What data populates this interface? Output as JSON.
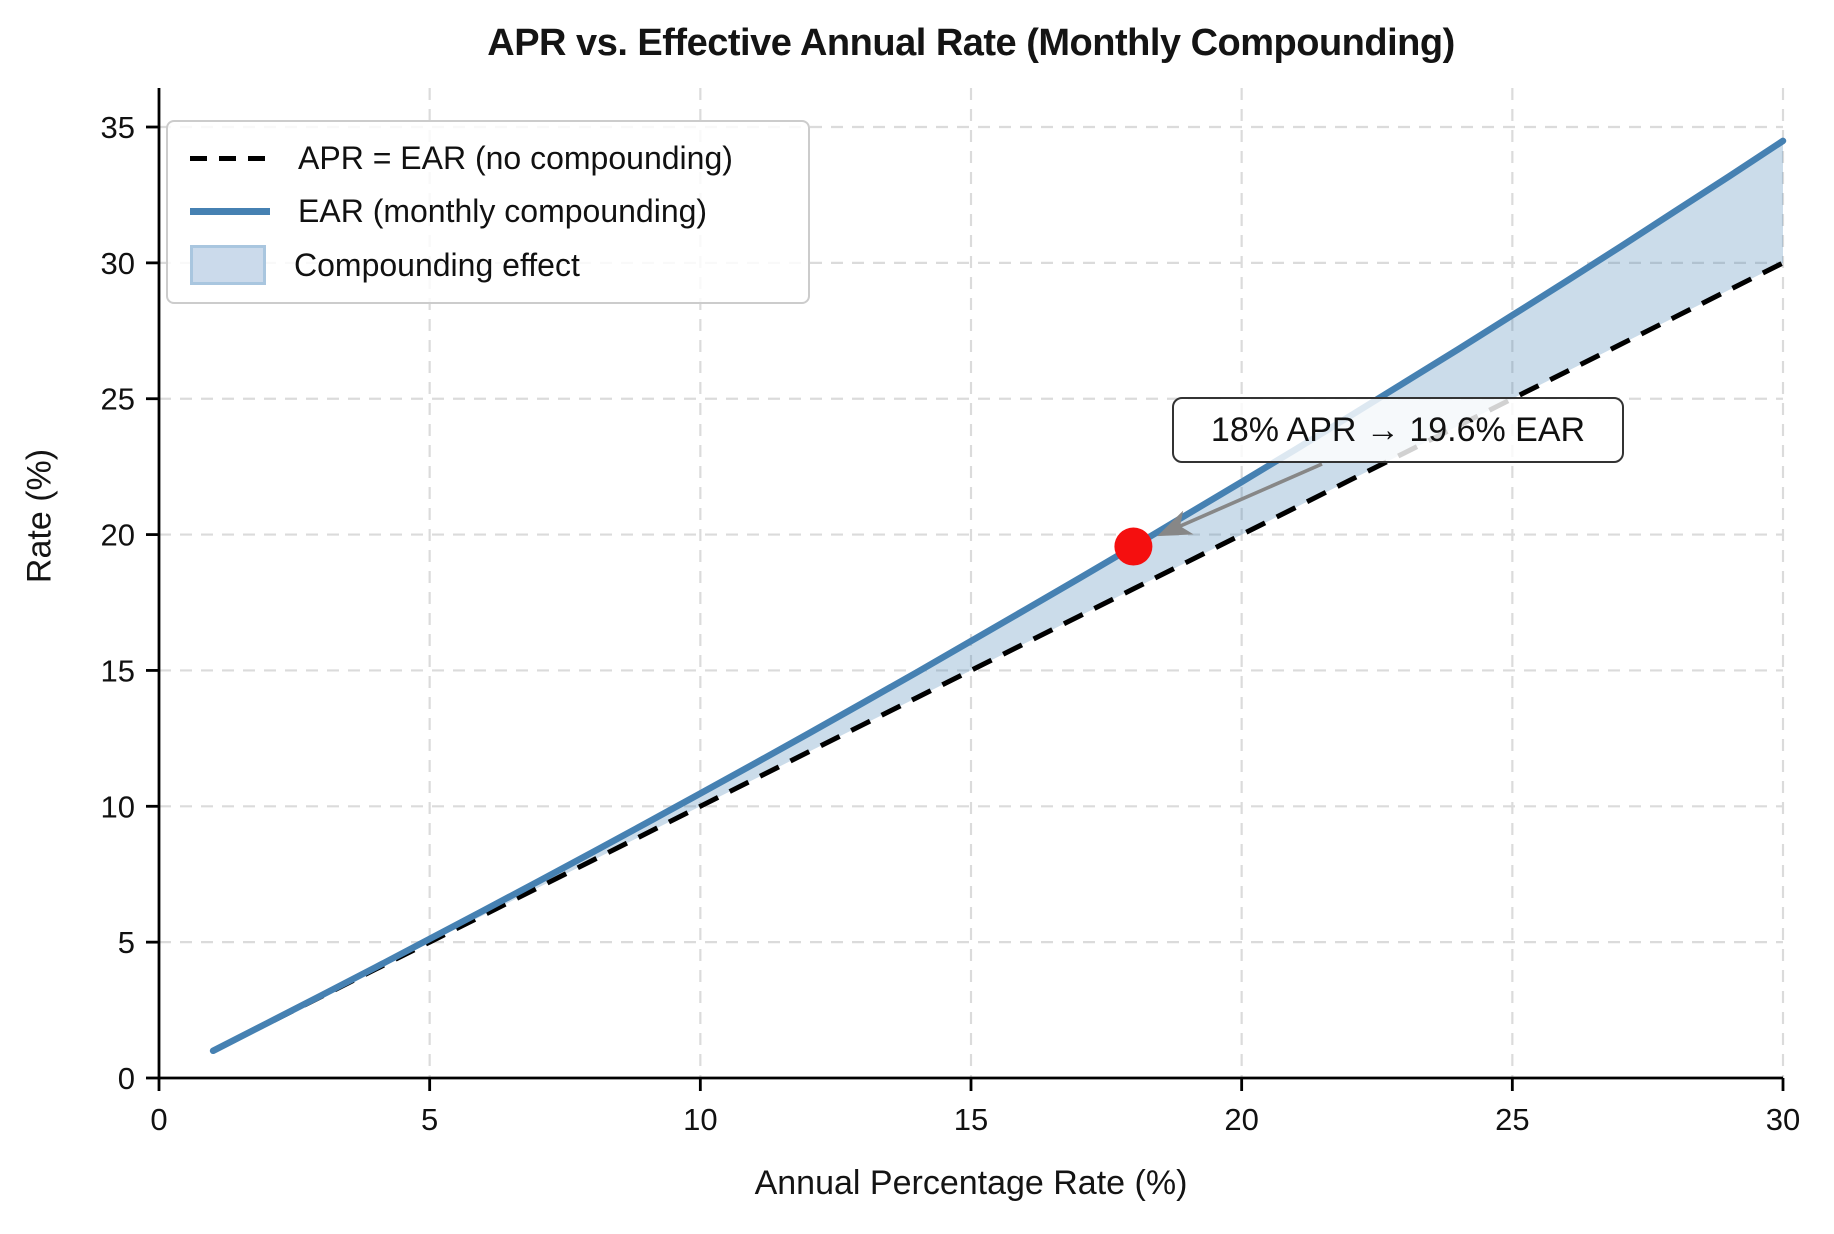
{
  "chart_data": {
    "type": "line",
    "title": "APR vs. Effective Annual Rate (Monthly Compounding)",
    "xlabel": "Annual Percentage Rate (%)",
    "ylabel": "Rate (%)",
    "xlim": [
      0,
      30
    ],
    "ylim": [
      0,
      35
    ],
    "x_ticks": [
      0,
      5,
      10,
      15,
      20,
      25,
      30
    ],
    "y_ticks": [
      0,
      5,
      10,
      15,
      20,
      25,
      30,
      35
    ],
    "grid": true,
    "grid_color": "#dbdbdb",
    "legend_position": "upper-left",
    "x": [
      1,
      2,
      3,
      4,
      5,
      6,
      7,
      8,
      9,
      10,
      11,
      12,
      13,
      14,
      15,
      16,
      17,
      18,
      19,
      20,
      21,
      22,
      23,
      24,
      25,
      26,
      27,
      28,
      29,
      30
    ],
    "series": [
      {
        "name": "APR = EAR (no compounding)",
        "style": "dashed",
        "color": "#000000",
        "values": [
          1,
          2,
          3,
          4,
          5,
          6,
          7,
          8,
          9,
          10,
          11,
          12,
          13,
          14,
          15,
          16,
          17,
          18,
          19,
          20,
          21,
          22,
          23,
          24,
          25,
          26,
          27,
          28,
          29,
          30
        ]
      },
      {
        "name": "EAR (monthly compounding)",
        "style": "solid",
        "color": "#4681b2",
        "values": [
          1.0,
          2.02,
          3.04,
          4.07,
          5.12,
          6.17,
          7.23,
          8.3,
          9.38,
          10.47,
          11.57,
          12.68,
          13.8,
          14.93,
          16.08,
          17.23,
          18.39,
          19.56,
          20.75,
          21.94,
          23.14,
          24.36,
          25.59,
          26.82,
          28.07,
          29.33,
          30.6,
          31.89,
          33.18,
          34.49
        ]
      }
    ],
    "fill_between": {
      "name": "Compounding effect",
      "color": "#4681b2",
      "opacity": 0.28,
      "swatch_fill": "#cbdaeb",
      "swatch_border": "#a9c6df"
    },
    "annotation": {
      "text": "18% APR → 19.6% EAR",
      "x": 18,
      "y": 19.56,
      "marker_color": "#f50f0f",
      "arrow_color": "#878787"
    }
  }
}
